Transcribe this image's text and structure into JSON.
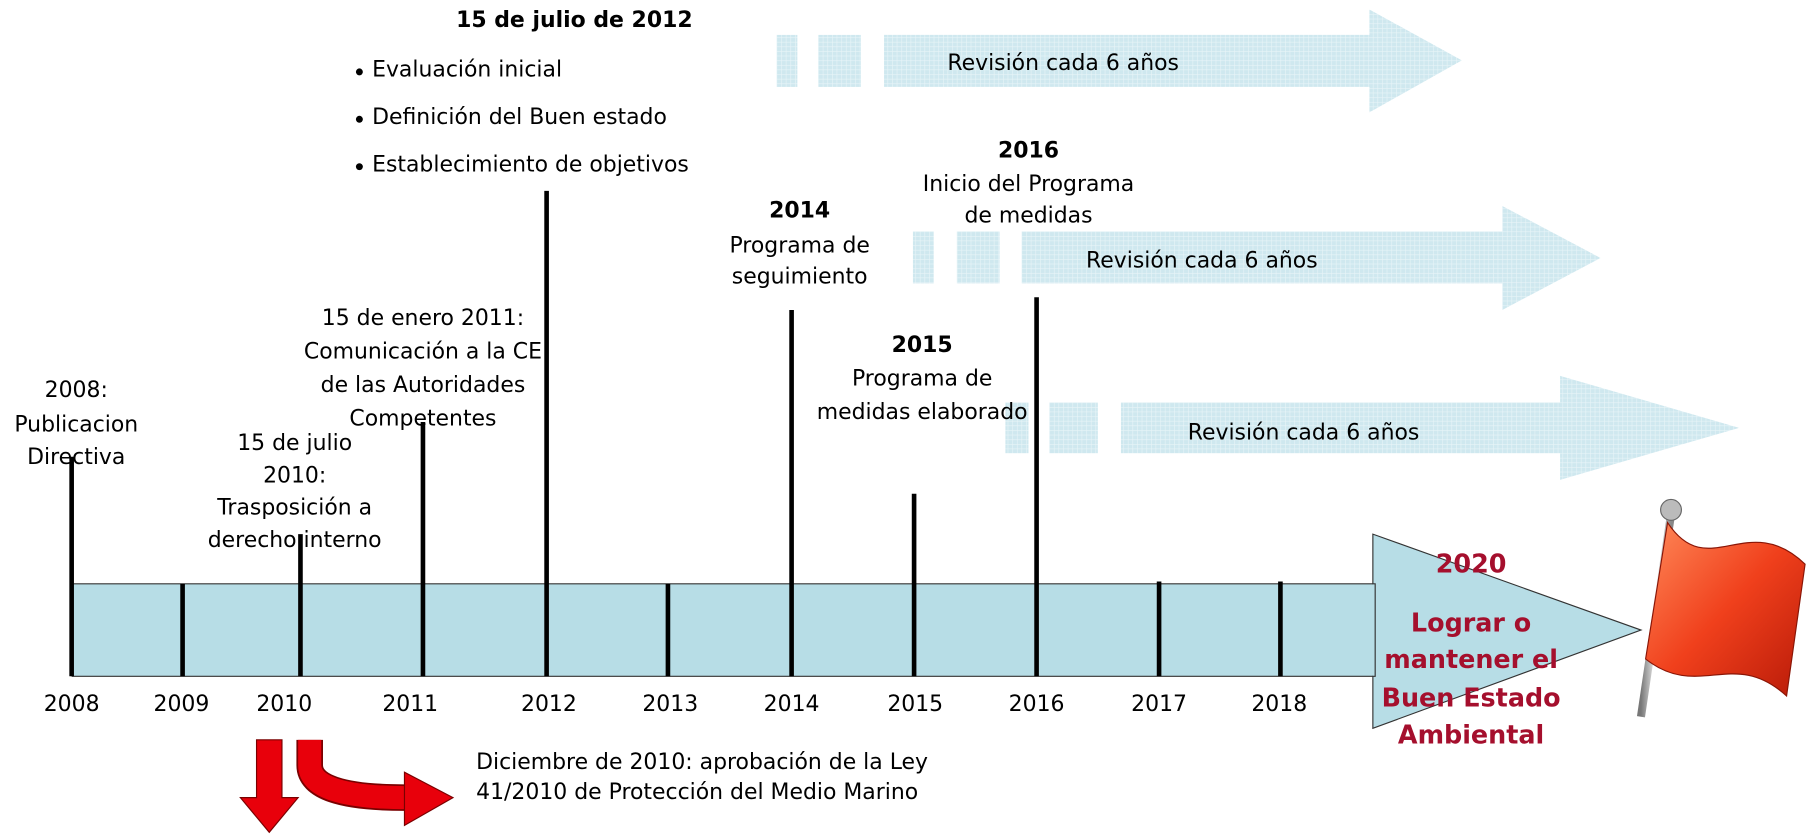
{
  "axis": {
    "years": [
      "2008",
      "2009",
      "2010",
      "2011",
      "2012",
      "2013",
      "2014",
      "2015",
      "2016",
      "2017",
      "2018"
    ]
  },
  "events": [
    {
      "lines": [
        "2008:",
        "Publicacion",
        "Directiva"
      ]
    },
    {
      "lines": [
        "15 de julio",
        "2010:",
        "Trasposición a",
        "derecho interno"
      ]
    },
    {
      "lines": [
        "15 de enero 2011:",
        "Comunicación a la CE",
        "de las Autoridades",
        "Competentes"
      ]
    },
    {
      "title": "15 de julio de 2012",
      "bullets": [
        "Evaluación inicial",
        "Definición del Buen estado",
        "Establecimiento de objetivos"
      ]
    },
    {
      "title": "2014",
      "lines": [
        "Programa de",
        "seguimiento"
      ]
    },
    {
      "title": "2015",
      "lines": [
        "Programa de",
        "medidas elaborado"
      ]
    },
    {
      "title": "2016",
      "lines": [
        "Inicio del Programa",
        "de medidas"
      ]
    }
  ],
  "reviews": [
    "Revisión cada 6 años",
    "Revisión cada 6 años",
    "Revisión cada 6 años"
  ],
  "goal": {
    "year": "2020",
    "lines": [
      "Lograr o",
      "mantener el",
      "Buen Estado",
      "Ambiental"
    ]
  },
  "note": [
    "Diciembre de 2010: aprobación de la Ley",
    "41/2010 de Protección del Medio Marino"
  ]
}
